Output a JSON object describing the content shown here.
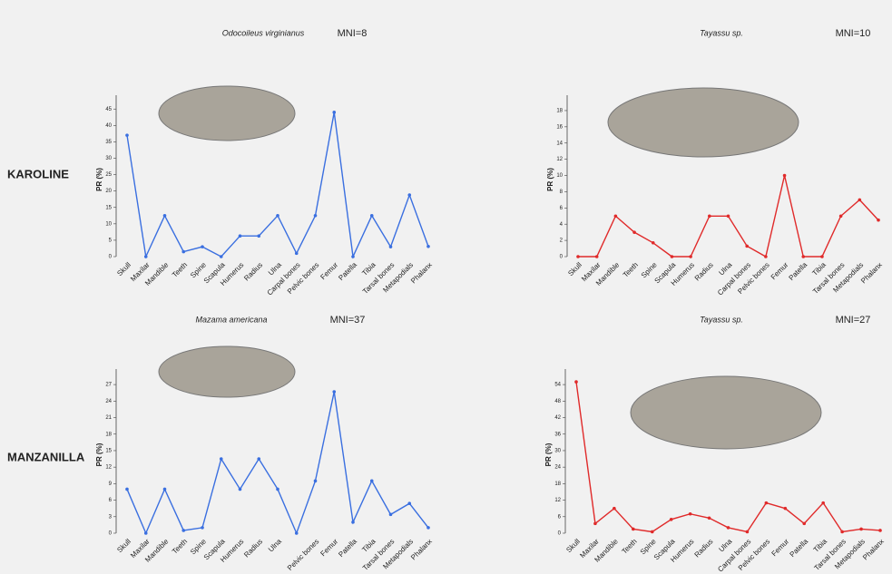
{
  "chart_data": [
    {
      "type": "line",
      "site": "KAROLINE",
      "title": "Odocoileus virginianus",
      "subtitle": "MNI=8",
      "y_label": "PR (%)",
      "color": "#3a6fe0",
      "categories": [
        "Skull",
        "Maxilar",
        "Mandible",
        "Teeth",
        "Spine",
        "Scapula",
        "Humerus",
        "Radius",
        "Ulna",
        "Carpal bones",
        "Pelvic bones",
        "Femur",
        "Patella",
        "Tibia",
        "Tarsal bones",
        "Metapodials",
        "Phalanx"
      ],
      "values": [
        37,
        0,
        12.5,
        1.5,
        3,
        0,
        6.3,
        6.3,
        12.5,
        1,
        12.5,
        44,
        0,
        12.5,
        3,
        18.8,
        3.1
      ],
      "ylim": [
        0,
        47
      ],
      "yticks": [
        0,
        5,
        10,
        15,
        20,
        25,
        30,
        35,
        40,
        45
      ]
    },
    {
      "type": "line",
      "title": "Tayassu sp.",
      "subtitle": "MNI=10",
      "y_label": "PR (%)",
      "color": "#e02a2a",
      "categories": [
        "Skull",
        "Maxilar",
        "Mandible",
        "Teeth",
        "Spine",
        "Scapula",
        "Humerus",
        "Radius",
        "Ulna",
        "Carpal bones",
        "Pelvic bones",
        "Femur",
        "Patella",
        "Tibia",
        "Tarsal bones",
        "Metapodials",
        "Phalanx"
      ],
      "values": [
        0,
        0,
        5,
        3,
        1.7,
        0,
        0,
        5,
        5,
        1.3,
        0,
        10,
        0,
        0,
        5,
        7,
        4.5
      ],
      "ylim": [
        0,
        19
      ],
      "yticks": [
        0,
        2,
        4,
        6,
        8,
        10,
        12,
        14,
        16,
        18
      ]
    },
    {
      "type": "line",
      "site": "MANZANILLA",
      "title": "Mazama americana",
      "subtitle": "MNI=37",
      "y_label": "PR (%)",
      "color": "#3a6fe0",
      "categories": [
        "Skull",
        "Maxilar",
        "Mandible",
        "Teeth",
        "Spine",
        "Scapula",
        "Humerus",
        "Radius",
        "Ulna",
        null,
        "Pelvic bones",
        "Femur",
        "Patella",
        "Tibia",
        "Tarsal bones",
        "Metapodials",
        "Phalanx"
      ],
      "values": [
        8,
        0,
        8,
        0.5,
        1,
        13.5,
        8,
        13.5,
        8,
        0,
        9.5,
        25.7,
        2,
        9.5,
        3.4,
        5.4,
        1
      ],
      "ylim": [
        0,
        28.5
      ],
      "yticks": [
        0,
        3,
        6,
        9,
        12,
        15,
        18,
        21,
        24,
        27
      ]
    },
    {
      "type": "line",
      "title": "Tayassu sp.",
      "subtitle": "MNI=27",
      "y_label": "PR (%)",
      "color": "#e02a2a",
      "categories": [
        "Skull",
        "Maxilar",
        "Mandible",
        "Teeth",
        "Spine",
        "Scapula",
        "Humerus",
        "Radius",
        "Ulna",
        "Carpal bones",
        "Pelvic bones",
        "Femur",
        "Patella",
        "Tibia",
        "Tarsal bones",
        "Metapodials",
        "Phalanx"
      ],
      "values": [
        55,
        3.5,
        9,
        1.5,
        0.5,
        5,
        7,
        5.5,
        2,
        0.5,
        11,
        9,
        3.5,
        11,
        0.5,
        1.5,
        1
      ],
      "ylim": [
        0,
        57
      ],
      "yticks": [
        0,
        6,
        12,
        18,
        24,
        30,
        36,
        42,
        48,
        54
      ]
    }
  ]
}
